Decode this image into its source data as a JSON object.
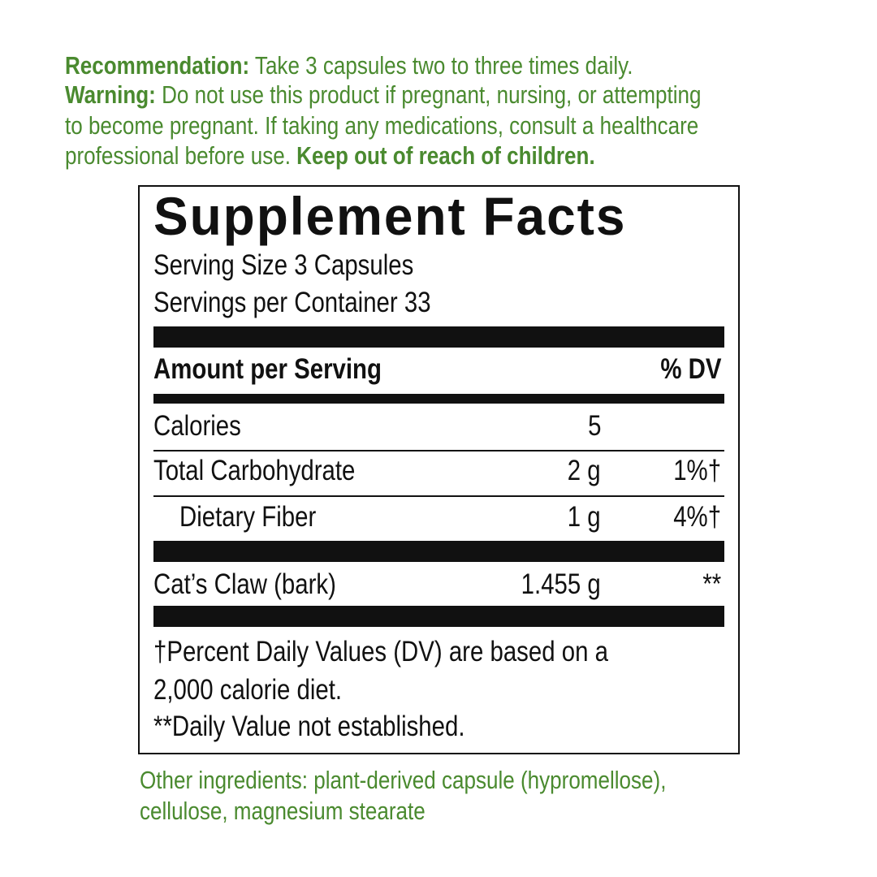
{
  "directions": {
    "recommendation_label": "Recommendation:",
    "recommendation_text": " Take 3 capsules two to three times daily.",
    "warning_label": "Warning:",
    "warning_line1": " Do not use this product if pregnant, nursing, or attempting",
    "warning_line2": "to become pregnant. If taking any medications, consult a healthcare",
    "warning_line3": "professional before use. ",
    "warning_bold": "Keep out of reach of children."
  },
  "facts": {
    "title": "Supplement Facts",
    "serving_size": "Serving Size 3 Capsules",
    "servings_per_container": "Servings per Container 33",
    "header_amount": "Amount per Serving",
    "header_dv": "% DV",
    "rows": [
      {
        "name": "Calories",
        "amount": "5",
        "dv": ""
      },
      {
        "name": "Total Carbohydrate",
        "amount": "2 g",
        "dv": "1%†"
      },
      {
        "name": "Dietary Fiber",
        "amount": "1 g",
        "dv": "4%†"
      },
      {
        "name": "Cat’s Claw (bark)",
        "amount": "1.455 g",
        "dv": "**"
      }
    ],
    "footnote_line1": "†Percent Daily Values (DV) are based on a",
    "footnote_line2": "2,000 calorie diet.",
    "footnote_line3": "**Daily Value not established."
  },
  "other_ingredients": {
    "line1": "Other ingredients: plant-derived capsule (hypromellose),",
    "line2": "cellulose, magnesium stearate"
  },
  "colors": {
    "green": "#4a8a2f",
    "black": "#111111"
  }
}
